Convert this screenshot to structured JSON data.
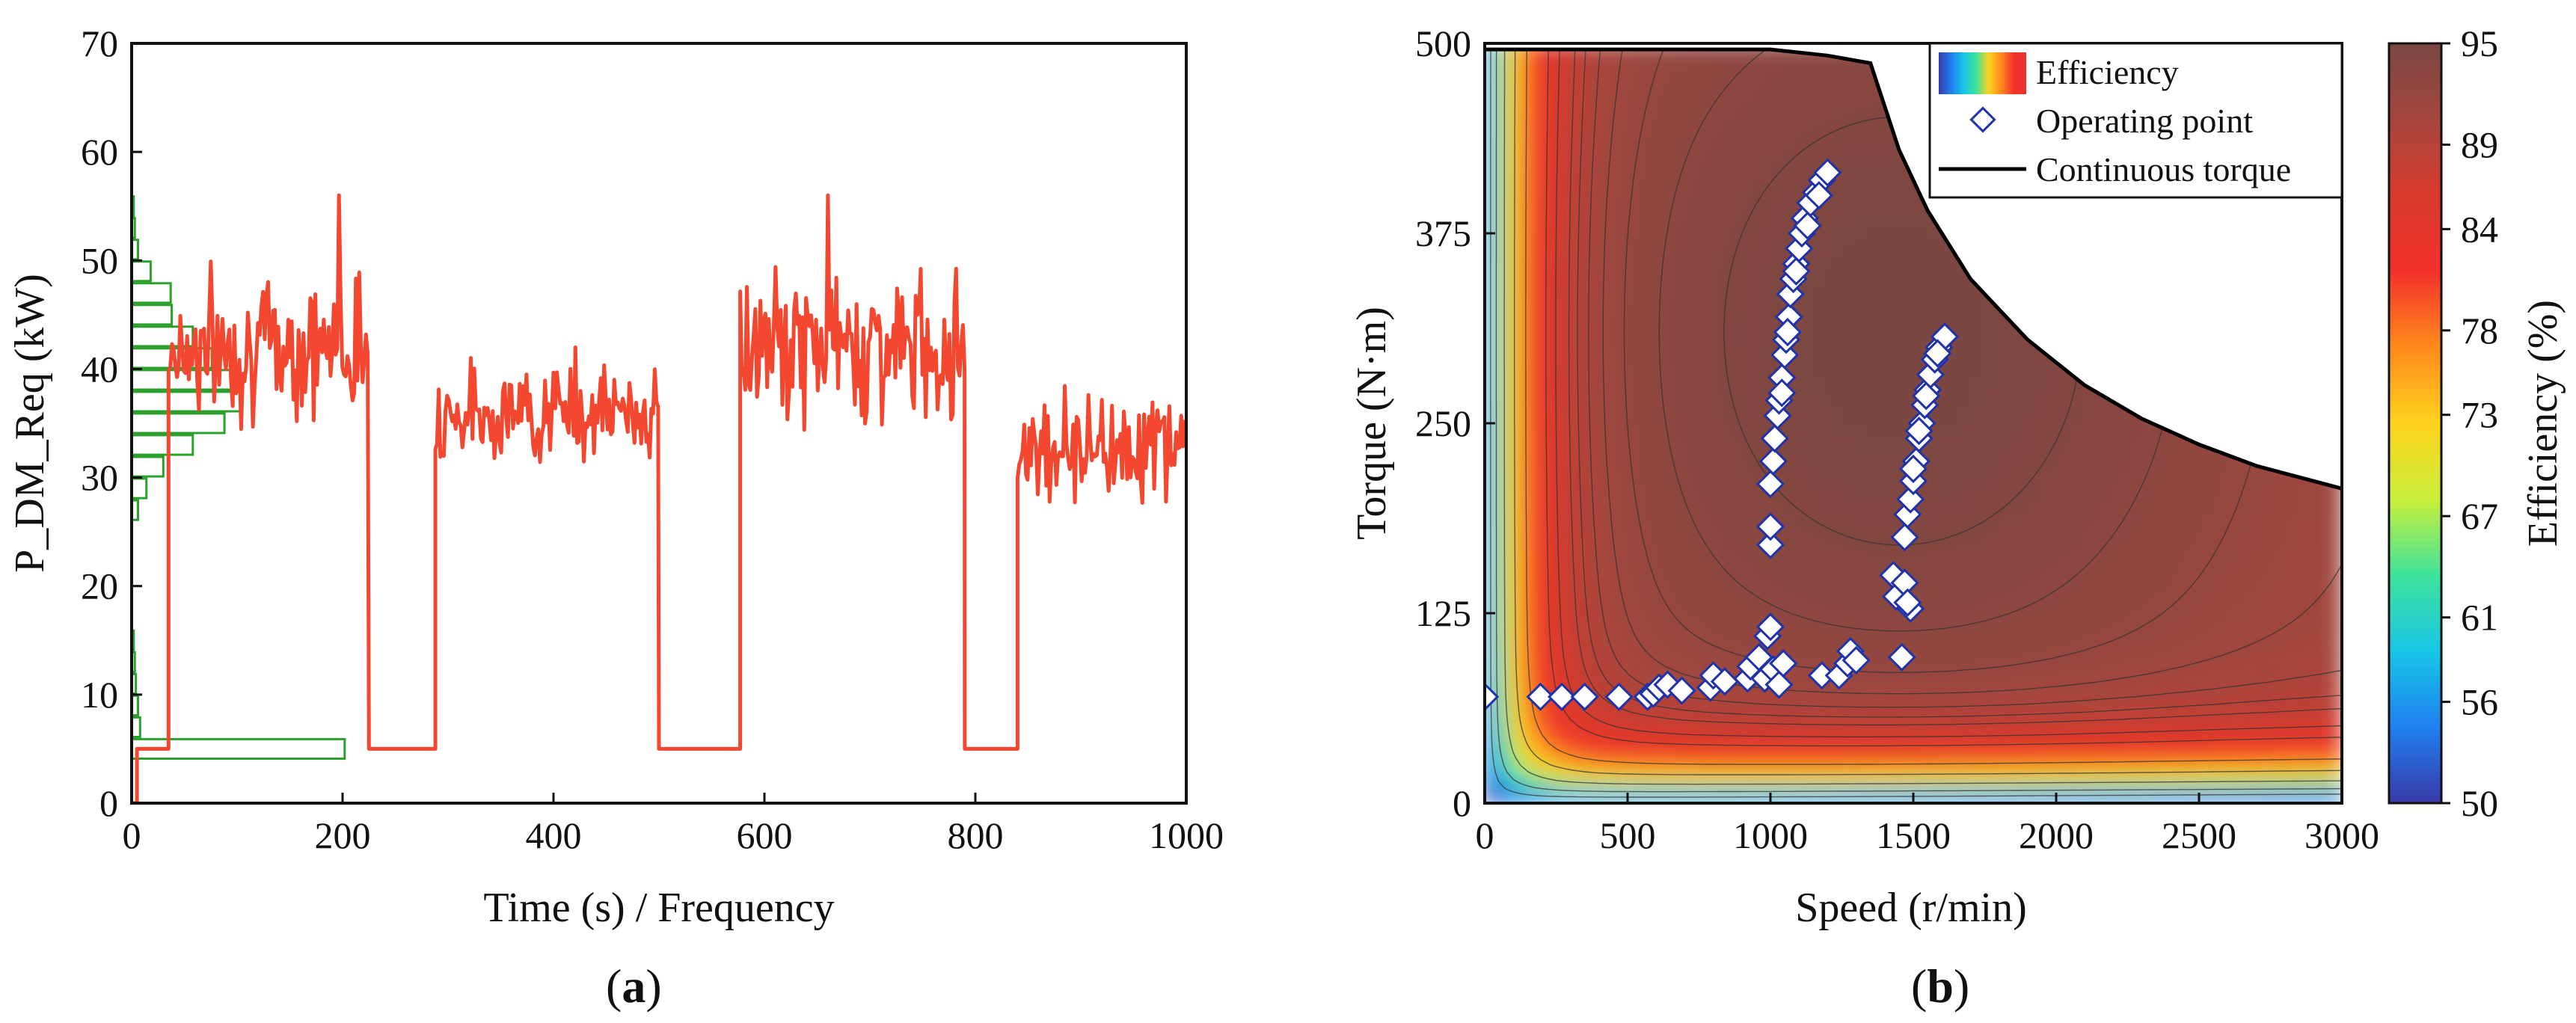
{
  "colors": {
    "power_line": "#f44730",
    "histogram": "#2ca02c",
    "marker_fill": "#ffffff",
    "marker_stroke": "#2032a8",
    "torque_line": "#000000",
    "colormap": [
      "#3a3aa8",
      "#1f7ff0",
      "#18c6e6",
      "#3fe39b",
      "#c9ef3a",
      "#ffd21e",
      "#ff8a1c",
      "#f2312b",
      "#d83a2c",
      "#a5463e",
      "#7a4742"
    ]
  },
  "chart_data": [
    {
      "id": "a",
      "type": "line",
      "panel_label": {
        "open": "(",
        "letter": "a",
        "close": ")"
      },
      "title": "",
      "xlabel": "Time (s) / Frequency",
      "ylabel": "P_DM_Req (kW)",
      "xlim": [
        0,
        1000
      ],
      "ylim": [
        0,
        70
      ],
      "xticks": [
        0,
        200,
        400,
        600,
        800,
        1000
      ],
      "yticks": [
        0,
        10,
        20,
        30,
        40,
        50,
        60,
        70
      ],
      "grid": false,
      "series": [
        {
          "name": "P_DM_Req",
          "style": "line",
          "segments": [
            {
              "from": 0,
              "to": 5,
              "level": 0,
              "noise": 0
            },
            {
              "from": 5,
              "to": 35,
              "level": 5,
              "noise": 0
            },
            {
              "from": 35,
              "to": 225,
              "level": 42,
              "noise": 4.5
            },
            {
              "from": 225,
              "to": 230,
              "level": 5,
              "noise": 0
            },
            {
              "from": 230,
              "to": 288,
              "level": 5,
              "noise": 0
            },
            {
              "from": 288,
              "to": 500,
              "level": 36,
              "noise": 3
            },
            {
              "from": 500,
              "to": 508,
              "level": 5,
              "noise": 0
            },
            {
              "from": 508,
              "to": 577,
              "level": 5,
              "noise": 0
            },
            {
              "from": 577,
              "to": 790,
              "level": 42,
              "noise": 4.5
            },
            {
              "from": 790,
              "to": 797,
              "level": 5,
              "noise": 0
            },
            {
              "from": 797,
              "to": 840,
              "level": 5,
              "noise": 0
            },
            {
              "from": 840,
              "to": 1000,
              "level": 33,
              "noise": 3.5
            }
          ],
          "max_points": [
            [
              195,
              56
            ],
            [
              660,
              56
            ],
            [
              420,
              42
            ]
          ]
        },
        {
          "name": "Frequency",
          "style": "histogram",
          "bin_width": 2,
          "bins": [
            {
              "y": 5,
              "count": 202
            },
            {
              "y": 7,
              "count": 8
            },
            {
              "y": 9,
              "count": 6
            },
            {
              "y": 11,
              "count": 4
            },
            {
              "y": 13,
              "count": 3
            },
            {
              "y": 15,
              "count": 2
            },
            {
              "y": 27,
              "count": 6
            },
            {
              "y": 29,
              "count": 14
            },
            {
              "y": 31,
              "count": 30
            },
            {
              "y": 33,
              "count": 58
            },
            {
              "y": 35,
              "count": 88
            },
            {
              "y": 37,
              "count": 104
            },
            {
              "y": 39,
              "count": 94
            },
            {
              "y": 41,
              "count": 76
            },
            {
              "y": 43,
              "count": 58
            },
            {
              "y": 45,
              "count": 38
            },
            {
              "y": 47,
              "count": 37
            },
            {
              "y": 49,
              "count": 18
            },
            {
              "y": 51,
              "count": 6
            },
            {
              "y": 53,
              "count": 3
            },
            {
              "y": 55,
              "count": 2
            }
          ]
        }
      ]
    },
    {
      "id": "b",
      "type": "heatmap",
      "panel_label": {
        "open": "(",
        "letter": "b",
        "close": ")"
      },
      "title": "",
      "xlabel": "Speed (r/min)",
      "ylabel": "Torque (N·m)",
      "xlim": [
        0,
        3000
      ],
      "ylim": [
        0,
        500
      ],
      "xticks": [
        0,
        500,
        1000,
        1500,
        2000,
        2500,
        3000
      ],
      "yticks": [
        0,
        125,
        250,
        375,
        500
      ],
      "colorbar": {
        "label": "Efficiency (%)",
        "range": [
          50,
          95
        ],
        "ticks": [
          50,
          56,
          61,
          67,
          73,
          78,
          84,
          89,
          95
        ]
      },
      "legend": {
        "position": "top-right",
        "entries": [
          "Efficiency",
          "Operating point",
          "Continuous torque"
        ]
      },
      "series": [
        {
          "name": "Continuous torque",
          "style": "line",
          "x": [
            0,
            1000,
            1200,
            1350,
            1450,
            1550,
            1700,
            1900,
            2100,
            2300,
            2500,
            2700,
            2900,
            3000
          ],
          "y": [
            496,
            496,
            492,
            487,
            430,
            390,
            345,
            305,
            275,
            253,
            236,
            222,
            212,
            207
          ]
        },
        {
          "name": "Operating point",
          "style": "scatter",
          "points": [
            [
              0,
              70
            ],
            [
              195,
              70
            ],
            [
              270,
              70
            ],
            [
              350,
              70
            ],
            [
              470,
              70
            ],
            [
              570,
              70
            ],
            [
              590,
              72
            ],
            [
              610,
              76
            ],
            [
              640,
              78
            ],
            [
              690,
              74
            ],
            [
              790,
              76
            ],
            [
              800,
              84
            ],
            [
              840,
              80
            ],
            [
              920,
              82
            ],
            [
              930,
              90
            ],
            [
              960,
              96
            ],
            [
              980,
              82
            ],
            [
              990,
              110
            ],
            [
              1000,
              116
            ],
            [
              1010,
              88
            ],
            [
              1030,
              78
            ],
            [
              1045,
              92
            ],
            [
              1180,
              84
            ],
            [
              1240,
              84
            ],
            [
              1270,
              92
            ],
            [
              1280,
              100
            ],
            [
              1300,
              94
            ],
            [
              1460,
              96
            ],
            [
              1000,
              170
            ],
            [
              1000,
              182
            ],
            [
              1430,
              150
            ],
            [
              1440,
              136
            ],
            [
              1470,
              145
            ],
            [
              1490,
              128
            ],
            [
              1480,
              132
            ],
            [
              1000,
              210
            ],
            [
              1010,
              225
            ],
            [
              1015,
              240
            ],
            [
              1025,
              255
            ],
            [
              1030,
              265
            ],
            [
              1040,
              280
            ],
            [
              1050,
              295
            ],
            [
              1055,
              305
            ],
            [
              1065,
              320
            ],
            [
              1070,
              335
            ],
            [
              1080,
              345
            ],
            [
              1090,
              355
            ],
            [
              1100,
              365
            ],
            [
              1110,
              375
            ],
            [
              1120,
              385
            ],
            [
              1140,
              395
            ],
            [
              1160,
              402
            ],
            [
              1180,
              410
            ],
            [
              1200,
              415
            ],
            [
              1040,
              270
            ],
            [
              1060,
              310
            ],
            [
              1090,
              350
            ],
            [
              1130,
              380
            ],
            [
              1170,
              400
            ],
            [
              1470,
              175
            ],
            [
              1480,
              190
            ],
            [
              1490,
              200
            ],
            [
              1500,
              212
            ],
            [
              1510,
              225
            ],
            [
              1520,
              240
            ],
            [
              1530,
              250
            ],
            [
              1540,
              262
            ],
            [
              1550,
              272
            ],
            [
              1560,
              282
            ],
            [
              1575,
              292
            ],
            [
              1590,
              300
            ],
            [
              1610,
              307
            ],
            [
              1500,
              220
            ],
            [
              1520,
              245
            ],
            [
              1545,
              268
            ],
            [
              1585,
              296
            ]
          ]
        },
        {
          "name": "Efficiency",
          "style": "filled-contour",
          "levels": [
            50,
            56,
            61,
            67,
            73,
            78,
            84,
            86,
            88,
            89,
            90,
            91,
            92,
            93,
            94,
            95
          ],
          "peak": {
            "speed": 1450,
            "torque": 310,
            "efficiency": 95
          }
        }
      ]
    }
  ]
}
